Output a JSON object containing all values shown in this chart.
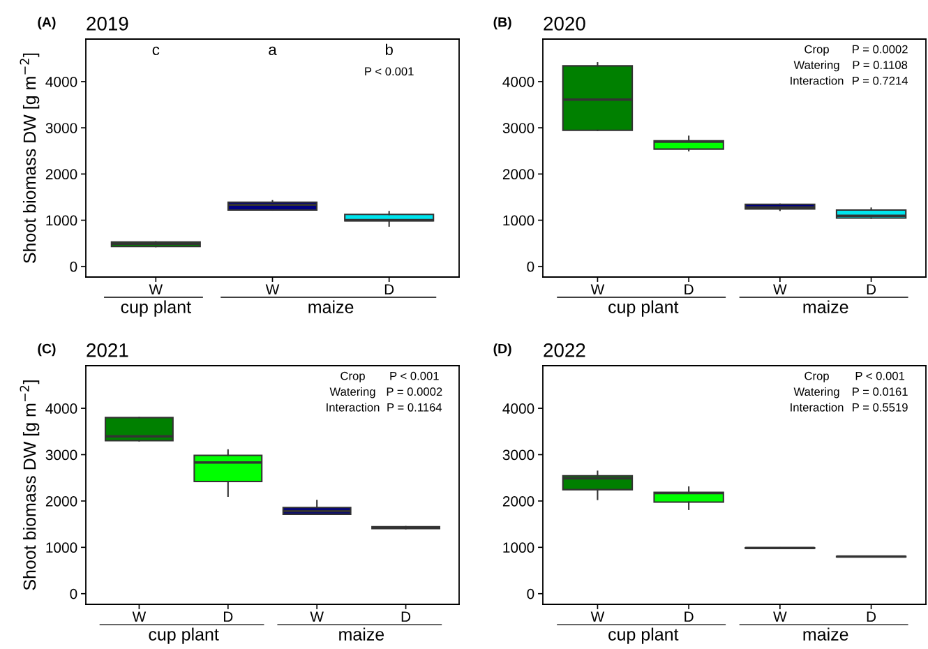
{
  "chart_data": [
    {
      "type": "box",
      "subtitle": "(A)",
      "title": "2019",
      "ylabel": "Shoot biomass DW [g m$^{−2}$]",
      "categories": [
        "W",
        "W",
        "D"
      ],
      "colors": [
        "#008000",
        "#000080",
        "#00e5ee"
      ],
      "ylim": [
        -230,
        4920
      ],
      "yticks": [
        0,
        1000,
        2000,
        3000,
        4000
      ],
      "boxes": [
        {
          "low": 430,
          "q1": 430,
          "median": 490,
          "q3": 530,
          "high": 530
        },
        {
          "low": 1220,
          "q1": 1220,
          "median": 1335,
          "q3": 1390,
          "high": 1420
        },
        {
          "low": 875,
          "q1": 985,
          "median": 1000,
          "q3": 1125,
          "high": 1185
        }
      ],
      "annotations": [
        "c",
        "a",
        "b",
        "P < 0.001",
        "cup plant",
        "maize"
      ]
    },
    {
      "type": "box",
      "subtitle": "(B)",
      "title": "2020",
      "categories": [
        "W",
        "D",
        "W",
        "D"
      ],
      "colors": [
        "#008000",
        "#00ff00",
        "#000080",
        "#00e5ee"
      ],
      "ylim": [
        -230,
        4920
      ],
      "yticks": [
        0,
        1000,
        2000,
        3000,
        4000
      ],
      "boxes": [
        {
          "low": 2945,
          "q1": 2945,
          "median": 3610,
          "q3": 4340,
          "high": 4405
        },
        {
          "low": 2505,
          "q1": 2540,
          "median": 2700,
          "q3": 2720,
          "high": 2815
        },
        {
          "low": 1215,
          "q1": 1245,
          "median": 1275,
          "q3": 1345,
          "high": 1345
        },
        {
          "low": 1045,
          "q1": 1045,
          "median": 1095,
          "q3": 1220,
          "high": 1260
        }
      ],
      "annotations": [
        "Crop",
        "P = 0.0002",
        "Watering",
        "P = 0.1108",
        "Interaction",
        "P = 0.7214",
        "cup plant",
        "maize"
      ]
    },
    {
      "type": "box",
      "subtitle": "(C)",
      "title": "2021",
      "ylabel": "Shoot biomass DW [g m$^{−2}$]",
      "categories": [
        "W",
        "D",
        "W",
        "D"
      ],
      "colors": [
        "#008000",
        "#00ff00",
        "#000080",
        "#00e5ee"
      ],
      "ylim": [
        -230,
        4920
      ],
      "yticks": [
        0,
        1000,
        2000,
        3000,
        4000
      ],
      "boxes": [
        {
          "low": 3300,
          "q1": 3300,
          "median": 3395,
          "q3": 3800,
          "high": 3800
        },
        {
          "low": 2105,
          "q1": 2420,
          "median": 2830,
          "q3": 2985,
          "high": 3100
        },
        {
          "low": 1715,
          "q1": 1715,
          "median": 1780,
          "q3": 1860,
          "high": 2010
        },
        {
          "low": 1405,
          "q1": 1405,
          "median": 1425,
          "q3": 1445,
          "high": 1445
        }
      ],
      "annotations": [
        "Crop",
        "P < 0.001",
        "Watering",
        "P = 0.0002",
        "Interaction",
        "P = 0.1164",
        "cup plant",
        "maize"
      ]
    },
    {
      "type": "box",
      "subtitle": "(D)",
      "title": "2022",
      "categories": [
        "W",
        "D",
        "W",
        "D"
      ],
      "colors": [
        "#008000",
        "#00ff00",
        "#000080",
        "#00e5ee"
      ],
      "ylim": [
        -230,
        4920
      ],
      "yticks": [
        0,
        1000,
        2000,
        3000,
        4000
      ],
      "boxes": [
        {
          "low": 2035,
          "q1": 2245,
          "median": 2490,
          "q3": 2545,
          "high": 2640
        },
        {
          "low": 1820,
          "q1": 1975,
          "median": 2170,
          "q3": 2185,
          "high": 2300
        },
        {
          "low": 980,
          "q1": 980,
          "median": 985,
          "q3": 990,
          "high": 990
        },
        {
          "low": 795,
          "q1": 795,
          "median": 800,
          "q3": 805,
          "high": 805
        }
      ],
      "annotations": [
        "Crop",
        "P < 0.001",
        "Watering",
        "P = 0.0161",
        "Interaction",
        "P = 0.5519",
        "cup plant",
        "maize"
      ]
    }
  ]
}
